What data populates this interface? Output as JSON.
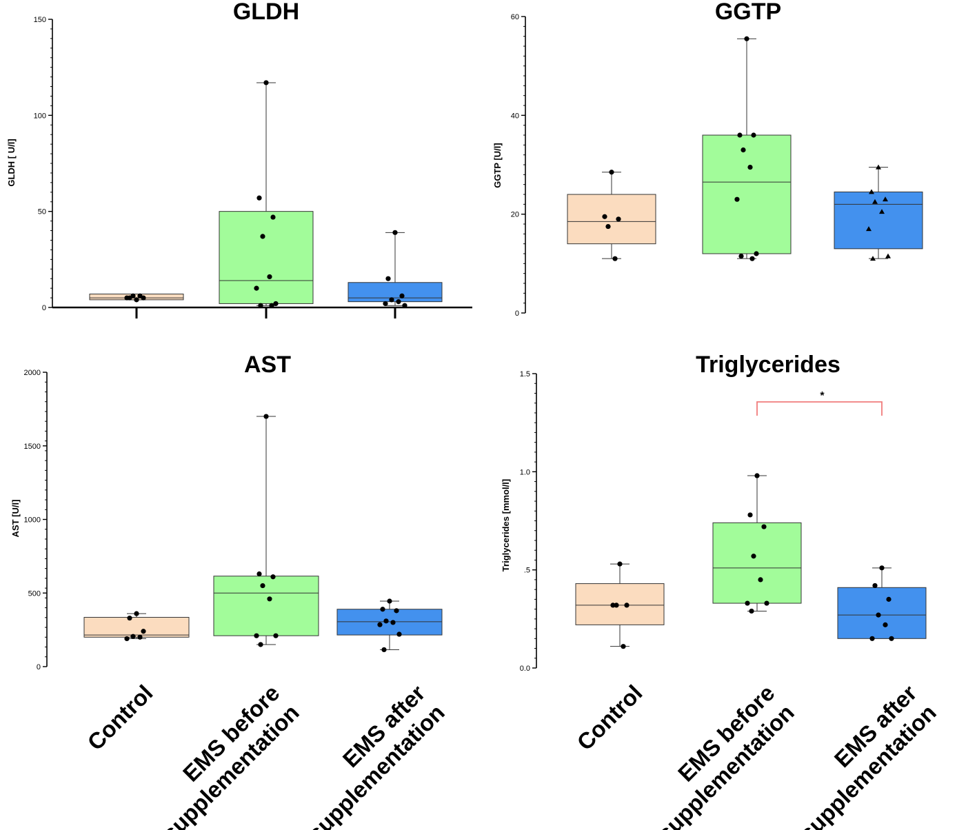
{
  "colors": {
    "control": "#fbdcbf",
    "ems_before": "#a2fc9a",
    "ems_after": "#4391ee",
    "significance": "#f07c7c"
  },
  "categories": [
    "Control",
    "EMS before supplementation",
    "EMS after supplementation"
  ],
  "category_lines": [
    [
      "Control"
    ],
    [
      "EMS before",
      "supplementation"
    ],
    [
      "EMS after",
      "supplementation"
    ]
  ],
  "chart_data": [
    {
      "id": "gldh",
      "type": "box",
      "title": "GLDH",
      "ylabel": "GLDH [ U/l]",
      "ylim": [
        0,
        150
      ],
      "yticks": [
        0,
        50,
        100,
        150
      ],
      "categories": [
        "Control",
        "EMS before supplementation",
        "EMS after supplementation"
      ],
      "boxes": [
        {
          "whisker_low": 4,
          "q1": 4,
          "median": 5,
          "q3": 7,
          "whisker_high": 7,
          "points": [
            4,
            5,
            5,
            6,
            6,
            5
          ]
        },
        {
          "whisker_low": 1,
          "q1": 2,
          "median": 14,
          "q3": 50,
          "whisker_high": 117,
          "points": [
            117,
            57,
            47,
            37,
            16,
            10,
            2,
            1,
            1
          ]
        },
        {
          "whisker_low": 1,
          "q1": 3,
          "median": 5,
          "q3": 13,
          "whisker_high": 39,
          "points": [
            39,
            15,
            6,
            4,
            3,
            2,
            1
          ]
        }
      ]
    },
    {
      "id": "ggtp",
      "type": "box",
      "title": "GGTP",
      "ylabel": "GGTP [U/l]",
      "ylim": [
        0,
        60
      ],
      "yticks": [
        0,
        20,
        40,
        60
      ],
      "categories": [
        "Control",
        "EMS before supplementation",
        "EMS after supplementation"
      ],
      "boxes": [
        {
          "whisker_low": 11,
          "q1": 14,
          "median": 18.5,
          "q3": 24,
          "whisker_high": 28.5,
          "points": [
            28.5,
            19.5,
            19,
            17.5,
            11
          ]
        },
        {
          "whisker_low": 11,
          "q1": 12,
          "median": 26.5,
          "q3": 36,
          "whisker_high": 55.5,
          "points": [
            55.5,
            36,
            36,
            33,
            29.5,
            23,
            12,
            11.5,
            11
          ]
        },
        {
          "whisker_low": 11,
          "q1": 13,
          "median": 22,
          "q3": 24.5,
          "whisker_high": 29.5,
          "points": [
            29.5,
            24.5,
            23,
            22.5,
            20.5,
            17,
            11.5,
            11
          ]
        }
      ]
    },
    {
      "id": "ast",
      "type": "box",
      "title": "AST",
      "ylabel": "AST [U/l]",
      "ylim": [
        0,
        2000
      ],
      "yticks": [
        0,
        500,
        1000,
        1500,
        2000
      ],
      "categories": [
        "Control",
        "EMS before supplementation",
        "EMS after supplementation"
      ],
      "boxes": [
        {
          "whisker_low": 190,
          "q1": 200,
          "median": 215,
          "q3": 335,
          "whisker_high": 360,
          "points": [
            360,
            330,
            240,
            205,
            200,
            190
          ]
        },
        {
          "whisker_low": 150,
          "q1": 210,
          "median": 500,
          "q3": 615,
          "whisker_high": 1700,
          "points": [
            1700,
            630,
            610,
            550,
            460,
            210,
            210,
            150
          ]
        },
        {
          "whisker_low": 115,
          "q1": 215,
          "median": 305,
          "q3": 390,
          "whisker_high": 445,
          "points": [
            445,
            390,
            380,
            310,
            300,
            285,
            220,
            115
          ]
        }
      ]
    },
    {
      "id": "triglycerides",
      "type": "box",
      "title": "Triglycerides",
      "ylabel": "Triglycerides   [mmol/l]",
      "ylim": [
        0,
        1.5
      ],
      "yticks": [
        "0.0",
        ".5",
        "1.0",
        "1.5"
      ],
      "categories": [
        "Control",
        "EMS before supplementation",
        "EMS after supplementation"
      ],
      "boxes": [
        {
          "whisker_low": 0.11,
          "q1": 0.22,
          "median": 0.32,
          "q3": 0.43,
          "whisker_high": 0.53,
          "points": [
            0.53,
            0.32,
            0.32,
            0.32,
            0.11
          ]
        },
        {
          "whisker_low": 0.29,
          "q1": 0.33,
          "median": 0.51,
          "q3": 0.74,
          "whisker_high": 0.98,
          "points": [
            0.98,
            0.78,
            0.72,
            0.57,
            0.45,
            0.33,
            0.33,
            0.29
          ]
        },
        {
          "whisker_low": 0.15,
          "q1": 0.15,
          "median": 0.27,
          "q3": 0.41,
          "whisker_high": 0.51,
          "points": [
            0.51,
            0.42,
            0.35,
            0.27,
            0.22,
            0.15,
            0.15
          ]
        }
      ],
      "significance": {
        "from": 1,
        "to": 2,
        "label": "*"
      }
    }
  ]
}
